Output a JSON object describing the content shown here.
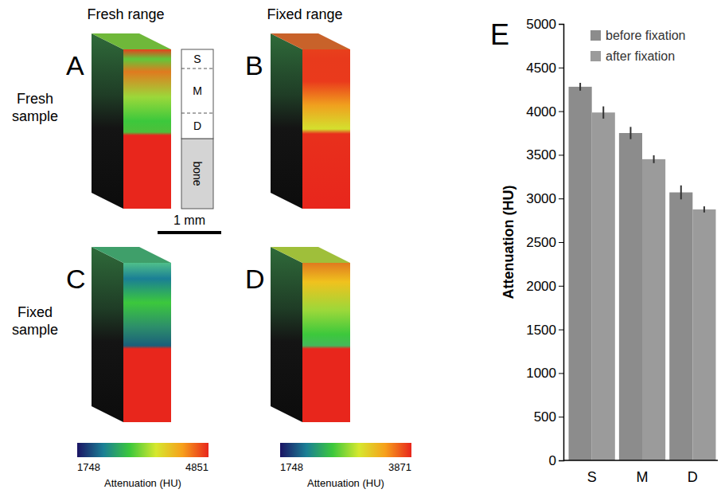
{
  "chart_data": {
    "type": "bar",
    "panel_label": "E",
    "categories": [
      "S",
      "M",
      "D"
    ],
    "series": [
      {
        "name": "before fixation",
        "color": "#8c8c8c",
        "values": [
          4280,
          3750,
          3070
        ],
        "errors": [
          45,
          70,
          80
        ]
      },
      {
        "name": "after fixation",
        "color": "#9b9b9b",
        "values": [
          3985,
          3450,
          2875
        ],
        "errors": [
          70,
          45,
          35
        ]
      }
    ],
    "ylabel": "Attenuation (HU)",
    "ylim": [
      0,
      5000
    ],
    "yticks": [
      0,
      500,
      1000,
      1500,
      2000,
      2500,
      3000,
      3500,
      4000,
      4500,
      5000
    ],
    "legend": "upper left",
    "grid": false
  },
  "figure": {
    "column_titles": [
      "Fresh range",
      "Fixed range"
    ],
    "row_titles": [
      "Fresh sample",
      "Fixed sample"
    ],
    "panels": [
      {
        "label": "A"
      },
      {
        "label": "B"
      },
      {
        "label": "C"
      },
      {
        "label": "D"
      }
    ],
    "schematic": {
      "zones": [
        "S",
        "M",
        "D",
        "bone"
      ]
    },
    "scale_bar": {
      "label": "1 mm"
    },
    "colorbars": [
      {
        "range": [
          1748,
          4851
        ],
        "ticks": [
          1748,
          4851
        ],
        "label": "Attenuation (HU)"
      },
      {
        "range": [
          1748,
          3871
        ],
        "ticks": [
          1748,
          3871
        ],
        "label": "Attenuation (HU)"
      }
    ]
  }
}
